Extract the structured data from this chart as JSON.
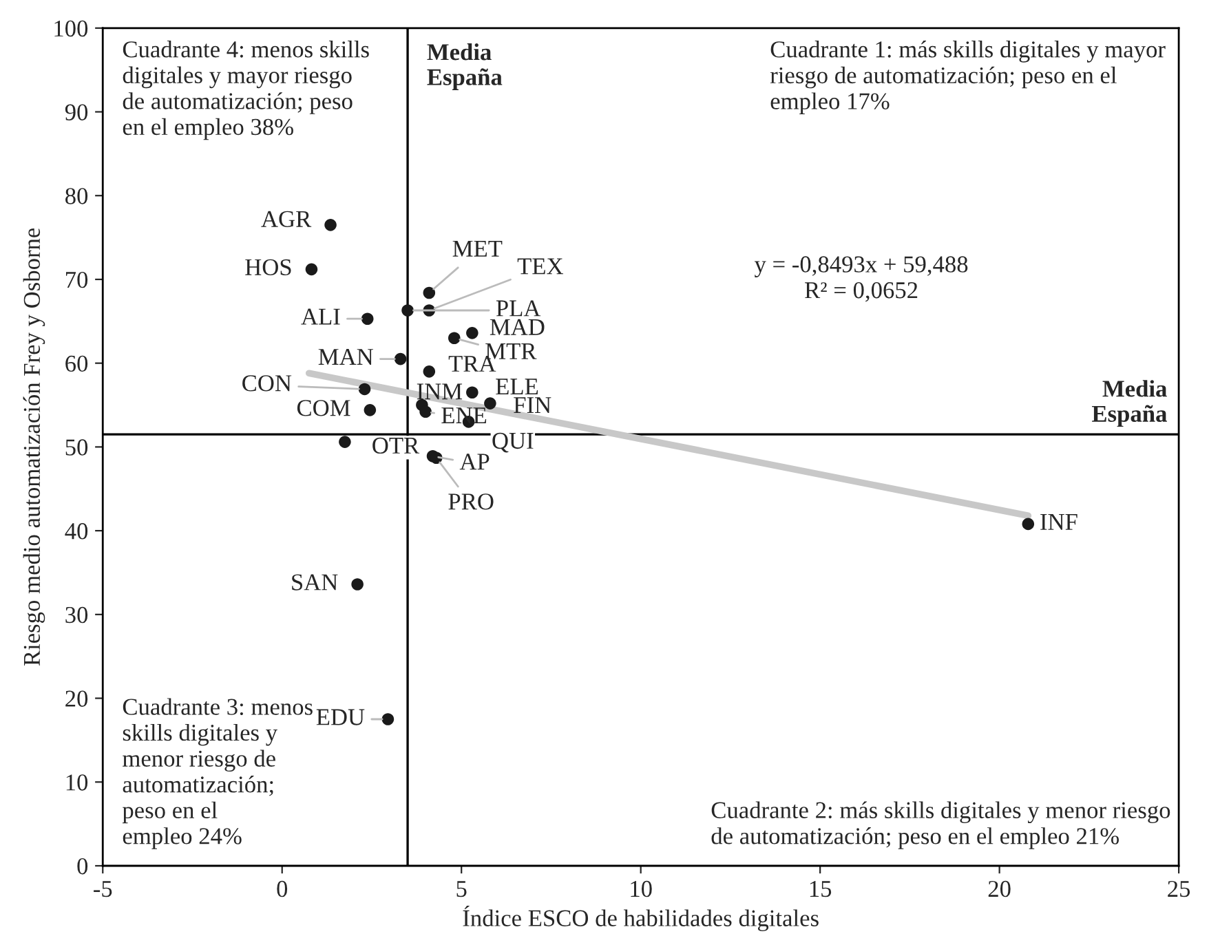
{
  "chart_data": {
    "type": "scatter",
    "xlabel": "Índice ESCO de habilidades digitales",
    "ylabel": "Riesgo medio automatización Frey y Osborne",
    "xlim": [
      -5,
      25
    ],
    "xticks": [
      -5,
      0,
      5,
      10,
      15,
      20,
      25
    ],
    "ylim": [
      0,
      100
    ],
    "yticks": [
      0,
      10,
      20,
      30,
      40,
      50,
      60,
      70,
      80,
      90,
      100
    ],
    "grid": false,
    "series": [
      {
        "color": "#1a1a1a",
        "marker": "circle",
        "x": [
          1.35,
          0.82,
          2.38,
          4.1,
          4.1,
          3.5,
          5.3,
          4.8,
          3.3,
          4.1,
          2.3,
          5.3,
          5.8,
          3.9,
          4.0,
          2.45,
          5.2,
          1.75,
          4.2,
          4.3,
          20.8,
          2.1,
          2.95
        ],
        "values": [
          76.5,
          71.2,
          65.3,
          68.4,
          66.3,
          66.3,
          63.6,
          63.0,
          60.5,
          59.0,
          56.9,
          56.5,
          55.2,
          55.0,
          54.2,
          54.4,
          53.0,
          50.6,
          48.9,
          48.7,
          40.8,
          33.6,
          17.5
        ],
        "value_labels": [
          "AGR",
          "HOS",
          "ALI",
          "MET",
          "TEX",
          "PLA",
          "MAD",
          "MTR",
          "MAN",
          "TRA",
          "CON",
          "ELE",
          "FIN",
          "INM",
          "ENE",
          "COM",
          "QUI",
          "OTR",
          "AP",
          "PRO",
          "INF",
          "SAN",
          "EDU"
        ]
      },
      {
        "type": "line",
        "color": "#c8c8c8",
        "x": [
          0.75,
          20.8
        ],
        "values": [
          58.8,
          41.8
        ]
      }
    ],
    "ref_lines": [
      {
        "axis": "x",
        "value": 3.5,
        "label": "Media\nEspaña",
        "color": "#000000"
      },
      {
        "axis": "y",
        "value": 51.5,
        "label": "Media\nEspaña",
        "color": "#000000"
      }
    ],
    "annotations": [
      "Cuadrante 4: menos skills\ndigitales y mayor riesgo\nde automatización; peso\nen el empleo 38%",
      "Cuadrante 1: más skills digitales y mayor\nriesgo de automatización; peso en el\nempleo 17%",
      "Cuadrante 3: menos\nskills digitales y\nmenor riesgo de\nautomatización;\npeso en el\nempleo 24%",
      "Cuadrante 2: más skills digitales y menor riesgo\nde automatización; peso en el empleo 21%",
      "y = -0,8493x + 59,488\nR² = 0,0652"
    ]
  }
}
